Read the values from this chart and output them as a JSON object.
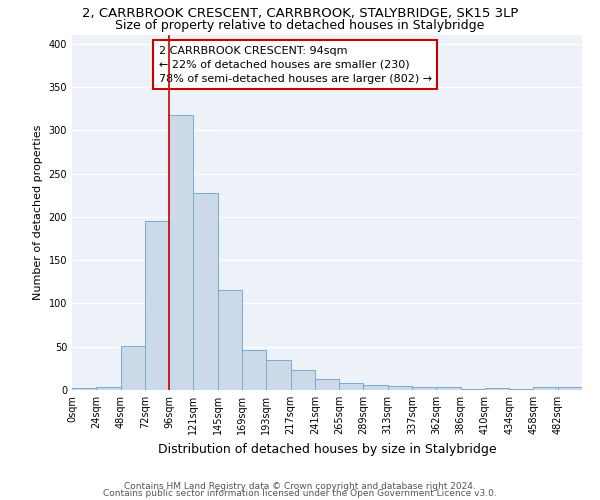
{
  "title": "2, CARRBROOK CRESCENT, CARRBROOK, STALYBRIDGE, SK15 3LP",
  "subtitle": "Size of property relative to detached houses in Stalybridge",
  "xlabel": "Distribution of detached houses by size in Stalybridge",
  "ylabel": "Number of detached properties",
  "bar_labels": [
    "0sqm",
    "24sqm",
    "48sqm",
    "72sqm",
    "96sqm",
    "121sqm",
    "145sqm",
    "169sqm",
    "193sqm",
    "217sqm",
    "241sqm",
    "265sqm",
    "289sqm",
    "313sqm",
    "337sqm",
    "362sqm",
    "386sqm",
    "410sqm",
    "434sqm",
    "458sqm",
    "482sqm"
  ],
  "bar_values": [
    2,
    3,
    51,
    195,
    318,
    228,
    116,
    46,
    35,
    23,
    13,
    8,
    6,
    5,
    3,
    3,
    1,
    2,
    1,
    3,
    3
  ],
  "bar_color": "#ccd9e8",
  "bar_edge_color": "#7aaace",
  "background_color": "#edf2f9",
  "grid_color": "#ffffff",
  "ylim": [
    0,
    410
  ],
  "yticks": [
    0,
    50,
    100,
    150,
    200,
    250,
    300,
    350,
    400
  ],
  "property_line_x": 4,
  "property_line_color": "#cc0000",
  "annotation_line1": "2 CARRBROOK CRESCENT: 94sqm",
  "annotation_line2": "← 22% of detached houses are smaller (230)",
  "annotation_line3": "78% of semi-detached houses are larger (802) →",
  "footer1": "Contains HM Land Registry data © Crown copyright and database right 2024.",
  "footer2": "Contains public sector information licensed under the Open Government Licence v3.0.",
  "title_fontsize": 9.5,
  "subtitle_fontsize": 9,
  "xlabel_fontsize": 9,
  "ylabel_fontsize": 8,
  "tick_fontsize": 7,
  "annotation_fontsize": 8,
  "footer_fontsize": 6.5
}
